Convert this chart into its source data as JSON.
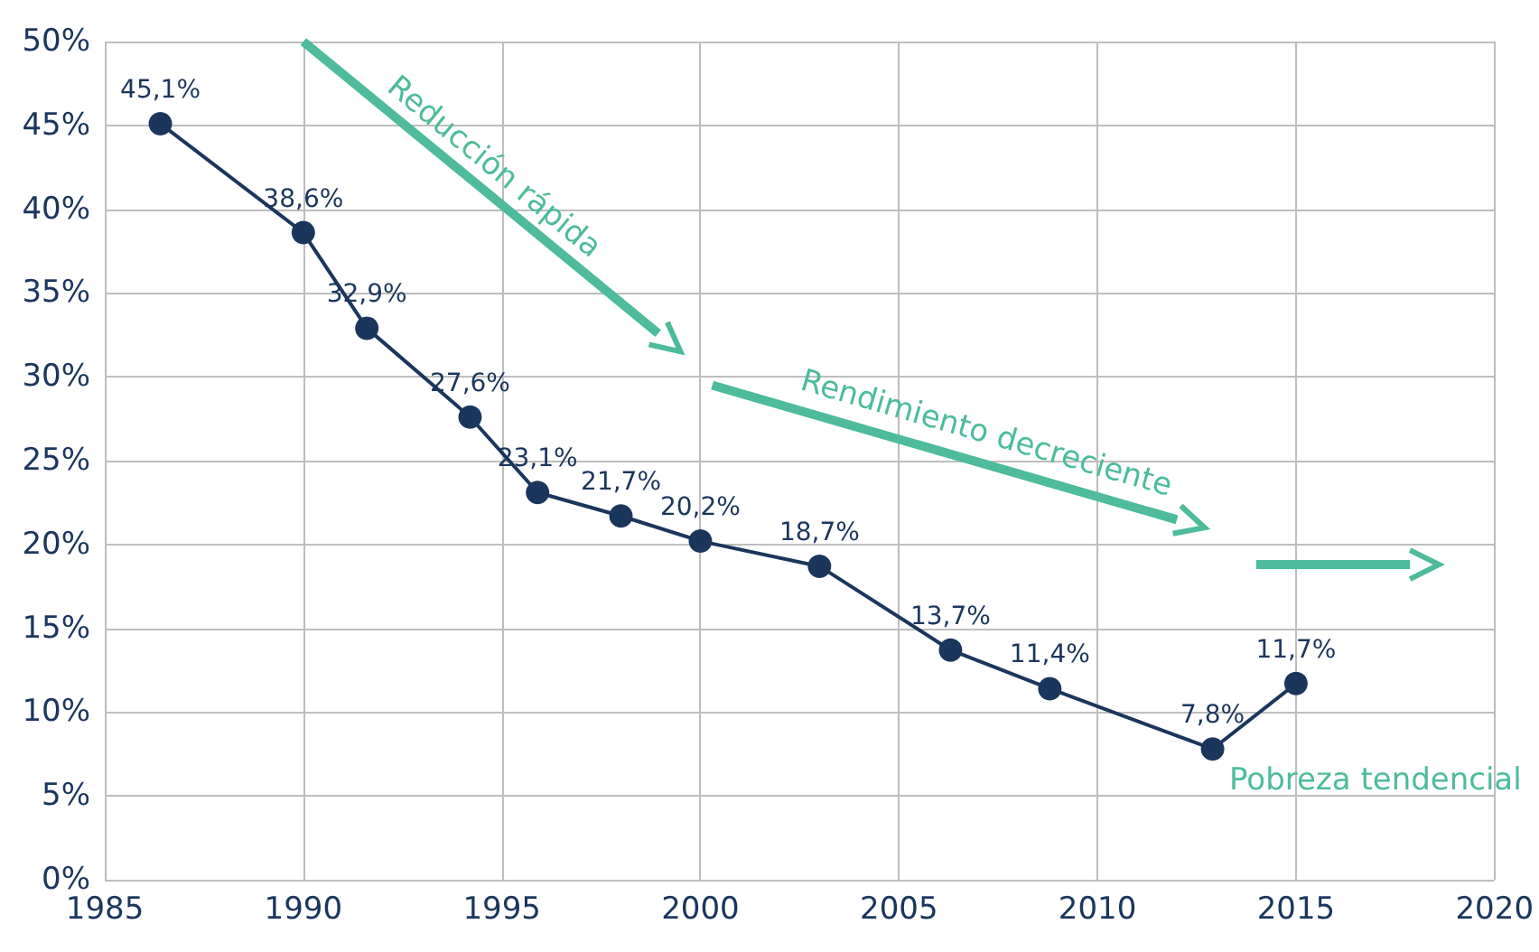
{
  "chart_data": {
    "type": "line",
    "x": [
      1986.4,
      1990.0,
      1991.6,
      1994.2,
      1995.9,
      1998.0,
      2000.0,
      2003.0,
      2006.3,
      2008.8,
      2012.9,
      2015.0
    ],
    "series": [
      {
        "color": "#1b365d",
        "values": [
          45.1,
          38.6,
          32.9,
          27.6,
          23.1,
          21.7,
          20.2,
          18.7,
          13.7,
          11.4,
          7.8,
          11.7
        ],
        "value_labels": [
          "45,1%",
          "38,6%",
          "32,9%",
          "27,6%",
          "23,1%",
          "21,7%",
          "20,2%",
          "18,7%",
          "13,7%",
          "11,4%",
          "7,8%",
          "11,7%"
        ]
      }
    ],
    "xlim": [
      1985,
      2020
    ],
    "xticks": [
      1985,
      1990,
      1995,
      2000,
      2005,
      2010,
      2015,
      2020
    ],
    "ylim": [
      0,
      50
    ],
    "yticks": [
      {
        "value": 0,
        "label": "0%"
      },
      {
        "value": 5,
        "label": "5%"
      },
      {
        "value": 10,
        "label": "10%"
      },
      {
        "value": 15,
        "label": "15%"
      },
      {
        "value": 20,
        "label": "20%"
      },
      {
        "value": 25,
        "label": "25%"
      },
      {
        "value": 30,
        "label": "30%"
      },
      {
        "value": 35,
        "label": "35%"
      },
      {
        "value": 40,
        "label": "40%"
      },
      {
        "value": 45,
        "label": "45%"
      },
      {
        "value": 50,
        "label": "50%"
      }
    ],
    "annotations": [
      "Reducción rápida",
      "Rendimiento decreciente",
      "Pobreza tendencial"
    ],
    "grid": true,
    "marker": "circle",
    "line_style": "solid"
  }
}
